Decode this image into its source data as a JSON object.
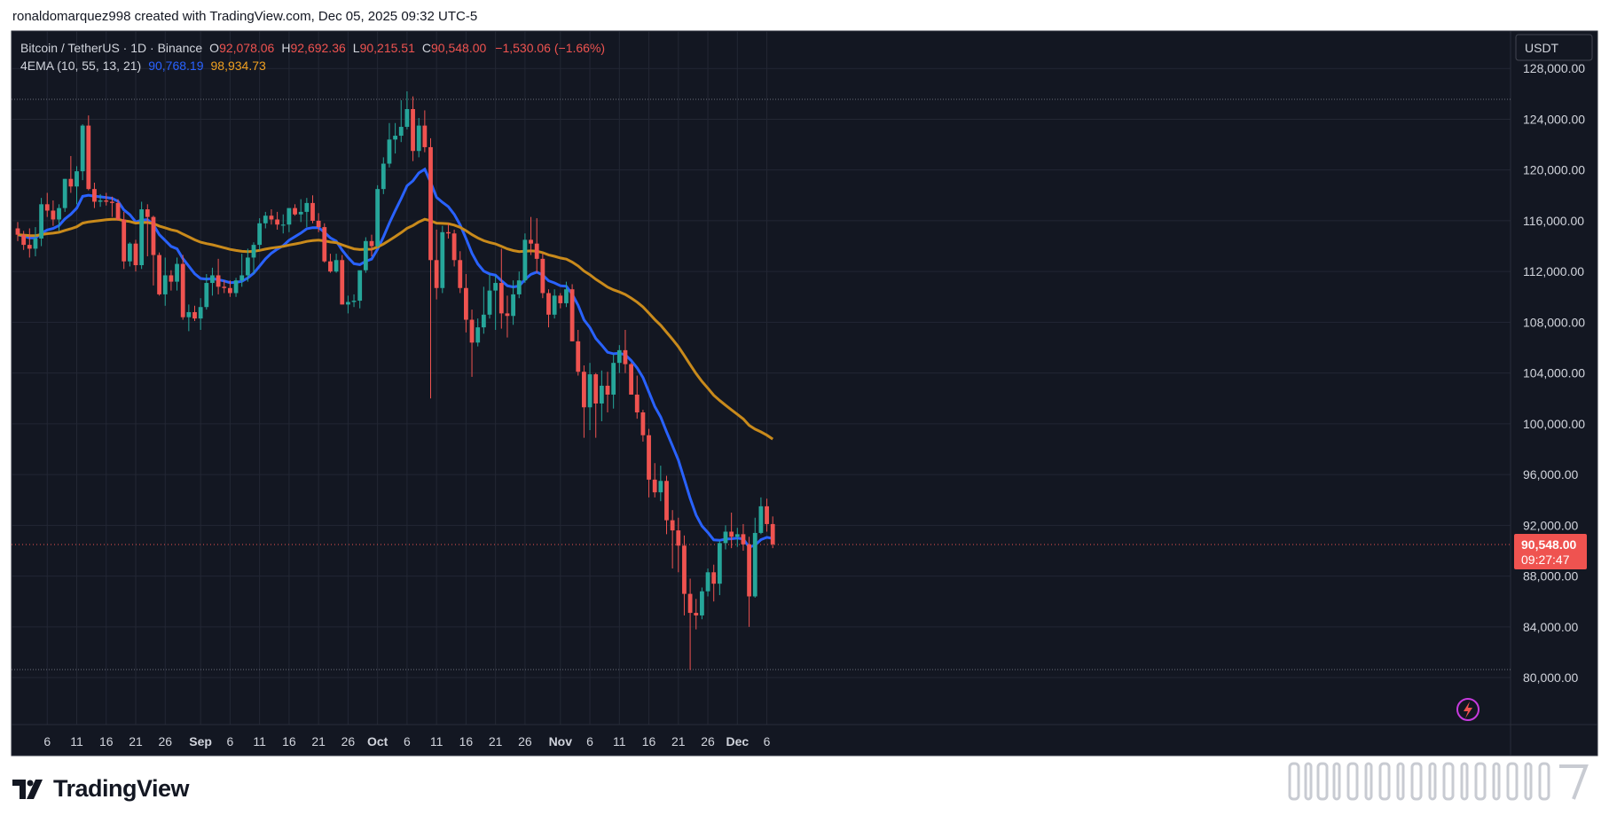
{
  "header": {
    "credit": "ronaldomarquez998 created with TradingView.com, Dec 05, 2025 09:32 UTC-5"
  },
  "legend": {
    "symbol": "Bitcoin / TetherUS · 1D · Binance",
    "open_label": "O",
    "open": "92,078.06",
    "high_label": "H",
    "high": "92,692.36",
    "low_label": "L",
    "low": "90,215.51",
    "close_label": "C",
    "close": "90,548.00",
    "change": "−1,530.06 (−1.66%)",
    "indicator": "4EMA (10, 55, 13, 21)",
    "ema_fast": "90,768.19",
    "ema_slow": "98,934.73"
  },
  "currency": "USDT",
  "price_badge": {
    "price": "90,548.00",
    "countdown": "09:27:47"
  },
  "brand": {
    "name": "TradingView"
  },
  "colors": {
    "bg": "#131722",
    "grid": "#232734",
    "text": "#d1d4dc",
    "up": "#26a69a",
    "down": "#ef5350",
    "ema_fast": "#2962ff",
    "ema_slow": "#c98a1b"
  },
  "chart_data": {
    "type": "candlestick",
    "y_ticks": [
      "128,000.00",
      "124,000.00",
      "120,000.00",
      "116,000.00",
      "112,000.00",
      "108,000.00",
      "104,000.00",
      "100,000.00",
      "96,000.00",
      "92,000.00",
      "88,000.00",
      "84,000.00",
      "80,000.00"
    ],
    "y_tick_values": [
      128000,
      124000,
      120000,
      116000,
      112000,
      108000,
      104000,
      100000,
      96000,
      92000,
      88000,
      84000,
      80000
    ],
    "ylim": [
      76300,
      130950
    ],
    "x_ticks": [
      {
        "label": "6",
        "i": 5
      },
      {
        "label": "11",
        "i": 10
      },
      {
        "label": "16",
        "i": 15
      },
      {
        "label": "21",
        "i": 20
      },
      {
        "label": "26",
        "i": 25
      },
      {
        "label": "Sep",
        "i": 31
      },
      {
        "label": "6",
        "i": 36
      },
      {
        "label": "11",
        "i": 41
      },
      {
        "label": "16",
        "i": 46
      },
      {
        "label": "21",
        "i": 51
      },
      {
        "label": "26",
        "i": 56
      },
      {
        "label": "Oct",
        "i": 61
      },
      {
        "label": "6",
        "i": 66
      },
      {
        "label": "11",
        "i": 71
      },
      {
        "label": "16",
        "i": 76
      },
      {
        "label": "21",
        "i": 81
      },
      {
        "label": "26",
        "i": 86
      },
      {
        "label": "Nov",
        "i": 92
      },
      {
        "label": "6",
        "i": 97
      },
      {
        "label": "11",
        "i": 102
      },
      {
        "label": "16",
        "i": 107
      },
      {
        "label": "21",
        "i": 112
      },
      {
        "label": "26",
        "i": 117
      },
      {
        "label": "Dec",
        "i": 122
      },
      {
        "label": "6",
        "i": 127
      }
    ],
    "ohlc": [
      [
        115400,
        115900,
        114400,
        114900
      ],
      [
        114900,
        115200,
        113700,
        114100
      ],
      [
        114100,
        115400,
        113100,
        113800
      ],
      [
        113800,
        115500,
        113200,
        114600
      ],
      [
        114600,
        117800,
        114000,
        117300
      ],
      [
        117300,
        118200,
        116300,
        116800
      ],
      [
        116800,
        117600,
        115600,
        116100
      ],
      [
        116100,
        117300,
        115200,
        117000
      ],
      [
        117000,
        119300,
        116700,
        119300
      ],
      [
        119300,
        121100,
        118200,
        118700
      ],
      [
        118700,
        120300,
        117300,
        119900
      ],
      [
        119900,
        123600,
        119200,
        123500
      ],
      [
        123500,
        124300,
        118400,
        118500
      ],
      [
        118500,
        119000,
        117000,
        117500
      ],
      [
        117500,
        118100,
        117100,
        117600
      ],
      [
        117600,
        118200,
        117200,
        117500
      ],
      [
        117500,
        117900,
        116300,
        117400
      ],
      [
        117400,
        117700,
        116000,
        116100
      ],
      [
        116100,
        116700,
        112200,
        112800
      ],
      [
        112800,
        114300,
        112400,
        114200
      ],
      [
        114200,
        114500,
        112000,
        112500
      ],
      [
        112500,
        117500,
        112200,
        116900
      ],
      [
        116900,
        117300,
        113200,
        116300
      ],
      [
        116300,
        116400,
        110900,
        113300
      ],
      [
        113300,
        113500,
        110100,
        110200
      ],
      [
        110200,
        113100,
        109300,
        111700
      ],
      [
        111700,
        112100,
        110500,
        111200
      ],
      [
        111200,
        113100,
        110500,
        112600
      ],
      [
        112600,
        113300,
        108200,
        108400
      ],
      [
        108400,
        109400,
        107300,
        108800
      ],
      [
        108800,
        109300,
        108100,
        108300
      ],
      [
        108300,
        109900,
        107400,
        109200
      ],
      [
        109200,
        111800,
        109000,
        111100
      ],
      [
        111100,
        112300,
        110100,
        111700
      ],
      [
        111700,
        113000,
        110200,
        110800
      ],
      [
        110800,
        111300,
        110300,
        110700
      ],
      [
        110700,
        111300,
        110000,
        110300
      ],
      [
        110300,
        111500,
        110000,
        111300
      ],
      [
        111300,
        113400,
        110800,
        111700
      ],
      [
        111700,
        113800,
        111200,
        113100
      ],
      [
        113100,
        114300,
        111800,
        114100
      ],
      [
        114100,
        116200,
        113700,
        115800
      ],
      [
        115800,
        116700,
        115400,
        116400
      ],
      [
        116400,
        116900,
        115700,
        116100
      ],
      [
        116100,
        116700,
        115300,
        115700
      ],
      [
        115700,
        116500,
        115000,
        115700
      ],
      [
        115700,
        116900,
        115100,
        117000
      ],
      [
        117000,
        117300,
        116400,
        116500
      ],
      [
        116500,
        117700,
        115900,
        116700
      ],
      [
        116700,
        117800,
        115500,
        117400
      ],
      [
        117400,
        118000,
        115800,
        116000
      ],
      [
        116000,
        116600,
        115100,
        115500
      ],
      [
        115500,
        115800,
        112700,
        112800
      ],
      [
        112800,
        113400,
        111900,
        112000
      ],
      [
        112000,
        113400,
        111900,
        112900
      ],
      [
        112900,
        113300,
        109400,
        109400
      ],
      [
        109400,
        110100,
        108700,
        109600
      ],
      [
        109600,
        110200,
        109200,
        109700
      ],
      [
        109700,
        111900,
        109100,
        112100
      ],
      [
        112100,
        114700,
        111900,
        114400
      ],
      [
        114400,
        114900,
        113200,
        114000
      ],
      [
        114000,
        118800,
        113900,
        118500
      ],
      [
        118500,
        121000,
        118100,
        120500
      ],
      [
        120500,
        123700,
        120200,
        122400
      ],
      [
        122400,
        123700,
        121300,
        122700
      ],
      [
        122700,
        125500,
        122200,
        123400
      ],
      [
        123400,
        126200,
        123200,
        124800
      ],
      [
        124800,
        125800,
        120700,
        121500
      ],
      [
        121500,
        124100,
        121000,
        123500
      ],
      [
        123500,
        124700,
        121400,
        121800
      ],
      [
        121800,
        122500,
        102000,
        112900
      ],
      [
        112900,
        115300,
        109800,
        110700
      ],
      [
        110700,
        115600,
        110300,
        115100
      ],
      [
        115100,
        115800,
        114600,
        115000
      ],
      [
        115000,
        115300,
        112400,
        112900
      ],
      [
        112900,
        113600,
        110300,
        110700
      ],
      [
        110700,
        111800,
        107200,
        108200
      ],
      [
        108200,
        109000,
        103700,
        106400
      ],
      [
        106400,
        108300,
        106100,
        107600
      ],
      [
        107600,
        110800,
        107100,
        108600
      ],
      [
        108600,
        111800,
        108300,
        110500
      ],
      [
        110500,
        111700,
        107400,
        111100
      ],
      [
        111100,
        113800,
        107500,
        108700
      ],
      [
        108700,
        110100,
        106800,
        108500
      ],
      [
        108500,
        111300,
        107800,
        110200
      ],
      [
        110200,
        112000,
        109900,
        111300
      ],
      [
        111300,
        115000,
        111100,
        114500
      ],
      [
        114500,
        116300,
        113300,
        114200
      ],
      [
        114200,
        116200,
        111900,
        113000
      ],
      [
        113000,
        113400,
        109900,
        110300
      ],
      [
        110300,
        110600,
        107600,
        108600
      ],
      [
        108600,
        110600,
        108300,
        110100
      ],
      [
        110100,
        110300,
        109100,
        109500
      ],
      [
        109500,
        111200,
        109200,
        110600
      ],
      [
        110600,
        111000,
        106500,
        106500
      ],
      [
        106500,
        107400,
        103800,
        104100
      ],
      [
        104100,
        104600,
        98900,
        101300
      ],
      [
        101300,
        104800,
        99500,
        103900
      ],
      [
        103900,
        104000,
        98900,
        101600
      ],
      [
        101600,
        104200,
        100200,
        103000
      ],
      [
        103000,
        104100,
        100900,
        102300
      ],
      [
        102300,
        105500,
        101200,
        104800
      ],
      [
        104800,
        106200,
        104000,
        105800
      ],
      [
        105800,
        107400,
        104000,
        104700
      ],
      [
        104700,
        104800,
        102600,
        102300
      ],
      [
        102300,
        103800,
        100400,
        100900
      ],
      [
        100900,
        101100,
        98600,
        99100
      ],
      [
        99100,
        99600,
        94200,
        95600
      ],
      [
        95600,
        96900,
        94200,
        94600
      ],
      [
        94600,
        96700,
        93900,
        95500
      ],
      [
        95500,
        95900,
        91300,
        92400
      ],
      [
        92400,
        93200,
        88600,
        91600
      ],
      [
        91600,
        92600,
        88300,
        90400
      ],
      [
        90400,
        91200,
        84900,
        86600
      ],
      [
        86600,
        87800,
        80600,
        85100
      ],
      [
        85100,
        86200,
        83800,
        84900
      ],
      [
        84900,
        87100,
        84600,
        86800
      ],
      [
        86800,
        88600,
        86400,
        88300
      ],
      [
        88300,
        88900,
        86000,
        87400
      ],
      [
        87400,
        90800,
        86500,
        90600
      ],
      [
        90600,
        92000,
        90100,
        91500
      ],
      [
        91500,
        93000,
        90200,
        91100
      ],
      [
        91100,
        91800,
        90300,
        91300
      ],
      [
        91300,
        92100,
        90000,
        90500
      ],
      [
        90500,
        91100,
        84000,
        86400
      ],
      [
        86400,
        92600,
        86300,
        91400
      ],
      [
        91400,
        94200,
        91300,
        93500
      ],
      [
        93500,
        94100,
        91500,
        92100
      ],
      [
        92100,
        92700,
        90200,
        90500
      ]
    ]
  }
}
